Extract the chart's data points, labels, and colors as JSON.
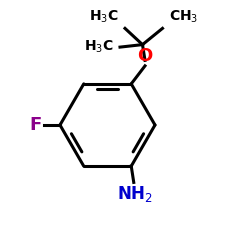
{
  "bg_color": "#ffffff",
  "bond_color": "#000000",
  "O_color": "#ff0000",
  "F_color": "#8b008b",
  "N_color": "#0000cd",
  "figsize": [
    2.5,
    2.5
  ],
  "dpi": 100
}
